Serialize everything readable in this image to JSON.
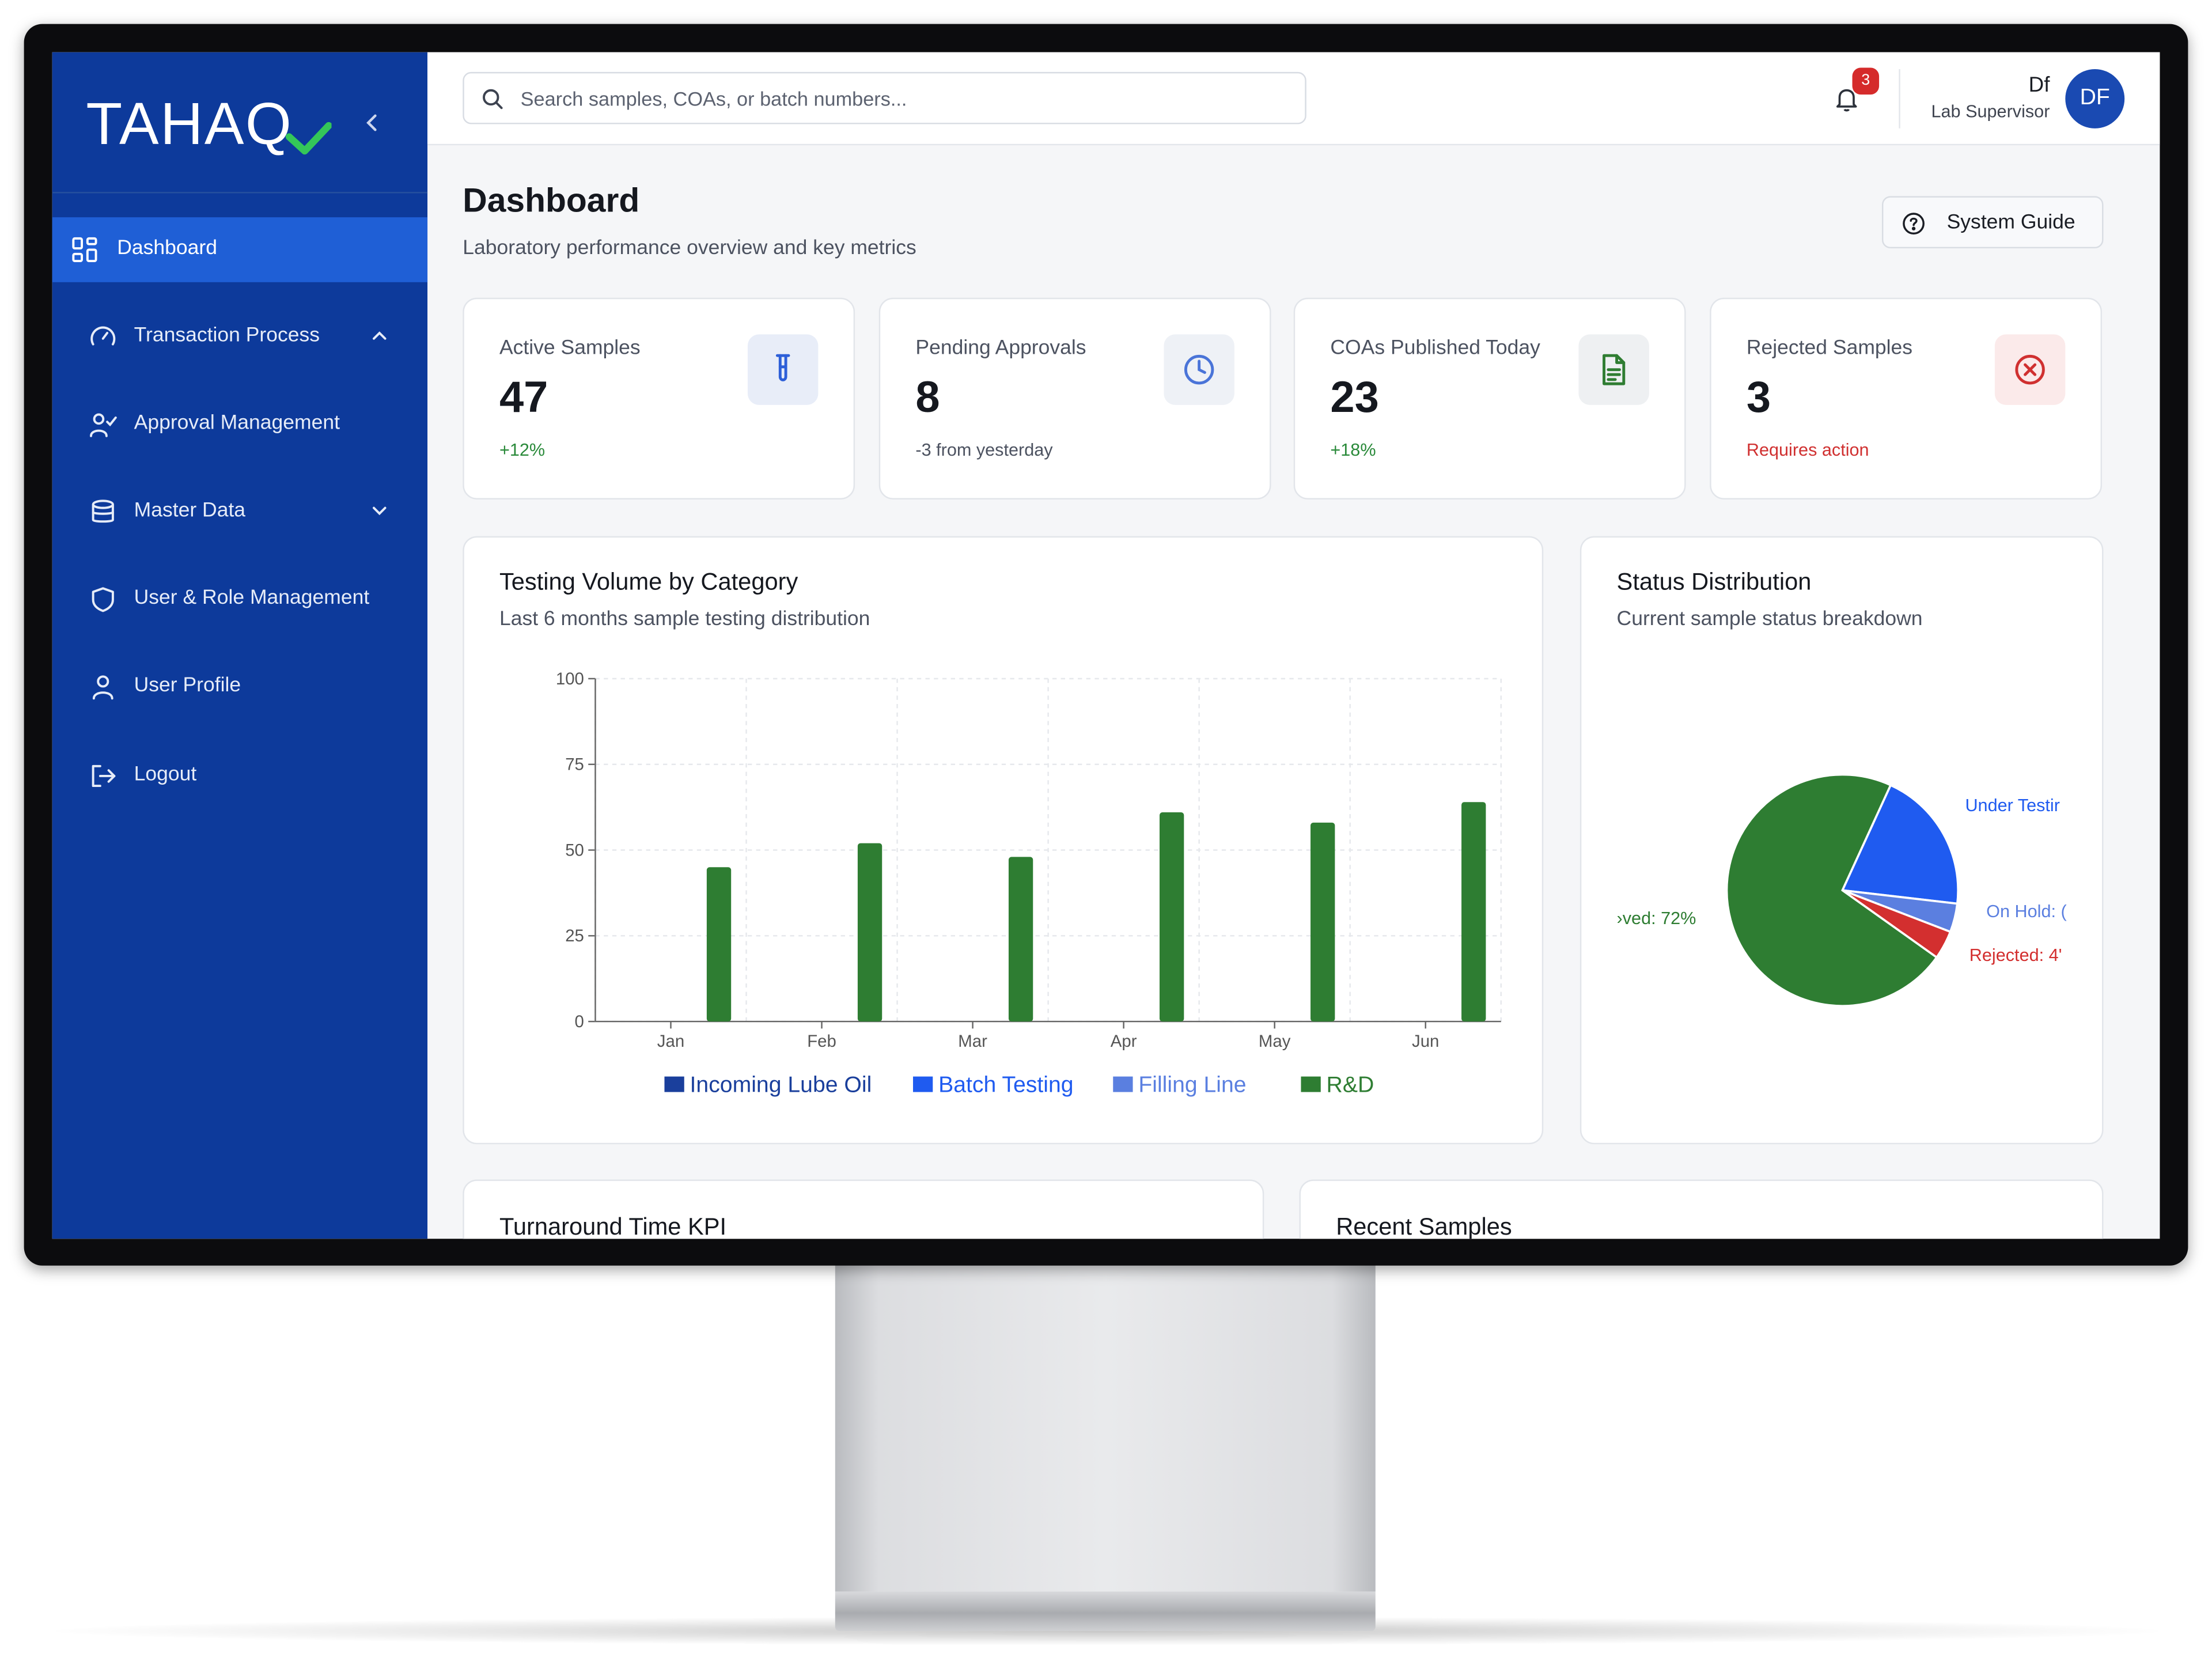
{
  "brand": {
    "logo_text": "TAHAQ"
  },
  "sidebar": {
    "items": [
      {
        "label": "Dashboard",
        "icon": "grid-icon",
        "active": true
      },
      {
        "label": "Transaction Process",
        "icon": "gauge-icon",
        "chevron": "chevron-up-icon"
      },
      {
        "label": "Approval Management",
        "icon": "user-check-icon"
      },
      {
        "label": "Master Data",
        "icon": "database-icon",
        "chevron": "chevron-down-icon"
      },
      {
        "label": "User & Role Management",
        "icon": "shield-icon"
      },
      {
        "label": "User Profile",
        "icon": "user-icon"
      },
      {
        "label": "Logout",
        "icon": "logout-icon"
      }
    ]
  },
  "topbar": {
    "search_placeholder": "Search samples, COAs, or batch numbers...",
    "notifications": "3",
    "user_name": "Df",
    "user_role": "Lab Supervisor",
    "avatar_initials": "DF"
  },
  "page": {
    "title": "Dashboard",
    "subtitle": "Laboratory performance overview and key metrics",
    "guide_label": "System Guide"
  },
  "stats": [
    {
      "label": "Active Samples",
      "value": "47",
      "sub": "+12%",
      "sub_color": "#2a8a3a",
      "icon": "test-tube-icon",
      "icon_color": "#2d5fd8",
      "icon_bg": "#e8edf8"
    },
    {
      "label": "Pending Approvals",
      "value": "8",
      "sub": "-3 from yesterday",
      "sub_color": "#4c5260",
      "icon": "clock-icon",
      "icon_color": "#4a74d8",
      "icon_bg": "#eef1f6"
    },
    {
      "label": "COAs Published Today",
      "value": "23",
      "sub": "+18%",
      "sub_color": "#2a8a3a",
      "icon": "document-icon",
      "icon_color": "#2f7d32",
      "icon_bg": "#eef0f2"
    },
    {
      "label": "Rejected Samples",
      "value": "3",
      "sub": "Requires action",
      "sub_color": "#d03030",
      "icon": "x-circle-icon",
      "icon_color": "#d03030",
      "icon_bg": "#fbeaea"
    }
  ],
  "chart_data": [
    {
      "type": "bar",
      "title": "Testing Volume by Category",
      "subtitle": "Last 6 months sample testing distribution",
      "categories": [
        "Jan",
        "Feb",
        "Mar",
        "Apr",
        "May",
        "Jun"
      ],
      "series": [
        {
          "name": "Incoming Lube Oil",
          "color": "#1a3f9c",
          "values": [
            0,
            0,
            0,
            0,
            0,
            0
          ]
        },
        {
          "name": "Batch Testing",
          "color": "#1f5bf0",
          "values": [
            0,
            0,
            0,
            0,
            0,
            0
          ]
        },
        {
          "name": "Filling Line",
          "color": "#5a7fe0",
          "values": [
            0,
            0,
            0,
            0,
            0,
            0
          ]
        },
        {
          "name": "R&D",
          "color": "#2e7d32",
          "values": [
            45,
            52,
            48,
            61,
            58,
            64
          ]
        }
      ],
      "yticks": [
        0,
        25,
        50,
        75,
        100
      ],
      "ylim": [
        0,
        100
      ],
      "grid": true,
      "legend": "bottom"
    },
    {
      "type": "pie",
      "title": "Status Distribution",
      "subtitle": "Current sample status breakdown",
      "slices": [
        {
          "label": "Under Testir",
          "value": 20,
          "color": "#1f5bf0"
        },
        {
          "label": "On Hold: (",
          "value": 4,
          "color": "#5b7fe0"
        },
        {
          "label": "Rejected: 4'",
          "value": 4,
          "color": "#d32f2f"
        },
        {
          "label": "›ved: 72%",
          "value": 72,
          "color": "#2e7d32"
        }
      ]
    }
  ],
  "bottom_cards": {
    "turnaround_title": "Turnaround Time KPI",
    "recent_title": "Recent Samples"
  }
}
